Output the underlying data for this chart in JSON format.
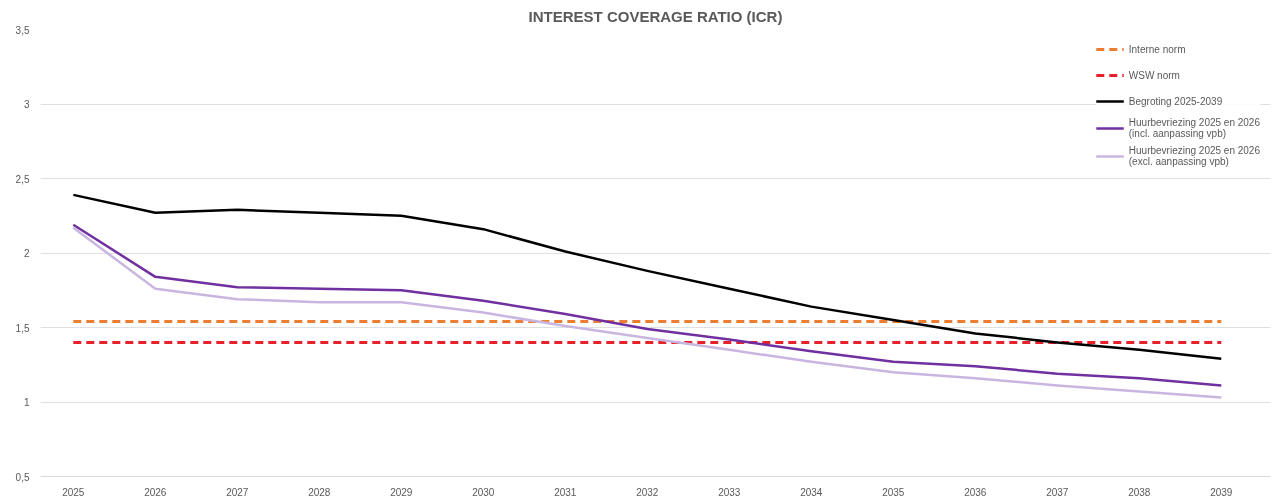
{
  "chart_data": {
    "type": "line",
    "title": "INTEREST COVERAGE RATIO (ICR)",
    "categories": [
      "2025",
      "2026",
      "2027",
      "2028",
      "2029",
      "2030",
      "2031",
      "2032",
      "2033",
      "2034",
      "2035",
      "2036",
      "2037",
      "2038",
      "2039"
    ],
    "series": [
      {
        "name": "Interne norm",
        "color": "#ed7d31",
        "line_style": "dashed",
        "values": [
          1.54,
          1.54,
          1.54,
          1.54,
          1.54,
          1.54,
          1.54,
          1.54,
          1.54,
          1.54,
          1.54,
          1.54,
          1.54,
          1.54,
          1.54
        ]
      },
      {
        "name": "WSW norm",
        "color": "#e8202a",
        "line_style": "dashed",
        "values": [
          1.4,
          1.4,
          1.4,
          1.4,
          1.4,
          1.4,
          1.4,
          1.4,
          1.4,
          1.4,
          1.4,
          1.4,
          1.4,
          1.4,
          1.4
        ]
      },
      {
        "name": "Begroting 2025-2039",
        "color": "#000000",
        "line_style": "solid",
        "values": [
          2.39,
          2.27,
          2.29,
          2.27,
          2.25,
          2.16,
          2.01,
          1.88,
          1.76,
          1.64,
          1.55,
          1.46,
          1.4,
          1.35,
          1.29
        ]
      },
      {
        "name": "Huurbevriezing 2025 en 2026\n(incl. aanpassing vpb)",
        "color": "#7030a0",
        "line_style": "solid",
        "values": [
          2.19,
          1.84,
          1.77,
          1.76,
          1.75,
          1.68,
          1.59,
          1.49,
          1.42,
          1.34,
          1.27,
          1.24,
          1.19,
          1.16,
          1.11
        ]
      },
      {
        "name": "Huurbevriezing 2025 en 2026\n(excl. aanpassing vpb)",
        "color": "#c9b6e0",
        "line_style": "solid",
        "values": [
          2.17,
          1.76,
          1.69,
          1.67,
          1.67,
          1.6,
          1.51,
          1.43,
          1.35,
          1.27,
          1.2,
          1.16,
          1.11,
          1.07,
          1.03
        ]
      }
    ],
    "ylim": [
      0.5,
      3.5
    ],
    "yticks": [
      {
        "value": 0.5,
        "label": "0,5"
      },
      {
        "value": 1,
        "label": "1"
      },
      {
        "value": 1.5,
        "label": "1,5"
      },
      {
        "value": 2,
        "label": "2"
      },
      {
        "value": 2.5,
        "label": "2,5"
      },
      {
        "value": 3,
        "label": "3"
      },
      {
        "value": 3.5,
        "label": "3,5"
      }
    ],
    "grid": "y",
    "legend": "top right",
    "marker": "none"
  }
}
